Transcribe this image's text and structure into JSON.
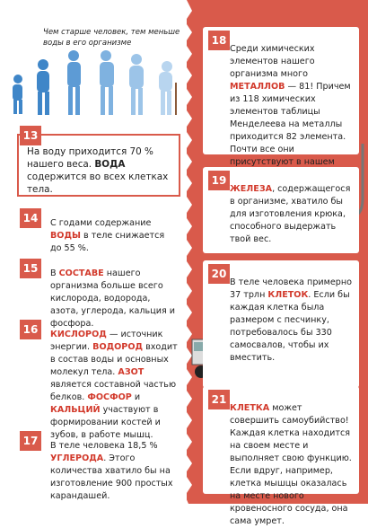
{
  "caption": "Чем старше человек, тем меньше воды в его организме",
  "facts": [
    {
      "number": "13",
      "parts": [
        {
          "text": "На воду приходится 70 % нашего веса. "
        },
        {
          "text": "ВОДА",
          "accent": true
        },
        {
          "text": " содержится во всех клетках тела."
        }
      ]
    },
    {
      "number": "14",
      "parts": [
        {
          "text": "С годами содержание "
        },
        {
          "text": "ВОДЫ",
          "accent": true
        },
        {
          "text": " в теле снижается до 55 %."
        }
      ]
    },
    {
      "number": "15",
      "parts": [
        {
          "text": "В "
        },
        {
          "text": "СОСТАВЕ",
          "accent": true
        },
        {
          "text": " нашего организма больше всего кислорода, водорода, азота, углерода, кальция и фосфора."
        }
      ]
    },
    {
      "number": "16",
      "parts": [
        {
          "text": "КИСЛОРОД",
          "accent": true
        },
        {
          "text": " — источник энергии. "
        },
        {
          "text": "ВОДОРОД",
          "accent": true
        },
        {
          "text": " входит в состав воды и основных молекул тела. "
        },
        {
          "text": "АЗОТ",
          "accent": true
        },
        {
          "text": " является составной частью белков. "
        },
        {
          "text": "ФОСФОР",
          "accent": true
        },
        {
          "text": " и "
        },
        {
          "text": "КАЛЬЦИЙ",
          "accent": true
        },
        {
          "text": " участвуют в формировании костей и зубов, в работе мышц."
        }
      ]
    },
    {
      "number": "17",
      "parts": [
        {
          "text": "В теле человека 18,5 % "
        },
        {
          "text": "УГЛЕРОДА",
          "accent": true
        },
        {
          "text": ". Этого количества хватило бы на изготовление 900 простых карандашей."
        }
      ]
    },
    {
      "number": "18",
      "parts": [
        {
          "text": "Среди химических элементов нашего организма много "
        },
        {
          "text": "МЕТАЛЛОВ",
          "accent": true
        },
        {
          "text": " — 81! Причем из 118 химических элементов таблицы Менделеева на металлы приходится 82 элемента. Почти все они присутствуют в нашем теле!"
        }
      ]
    },
    {
      "number": "19",
      "parts": [
        {
          "text": "ЖЕЛЕЗА",
          "accent": true
        },
        {
          "text": ", содержащегося в организме, хватило бы для изготовления крюка, способного выдержать твой вес."
        }
      ]
    },
    {
      "number": "20",
      "parts": [
        {
          "text": "В теле человека примерно 37 трлн "
        },
        {
          "text": "КЛЕТОК",
          "accent": true
        },
        {
          "text": ". Если бы каждая клетка была размером с песчинку, потребовалось бы 330 самосвалов, чтобы их вместить."
        }
      ]
    },
    {
      "number": "21",
      "parts": [
        {
          "text": "КЛЕТКА",
          "accent": true
        },
        {
          "text": " может совершить самоубийство! Каждая клетка находится на своем месте и выполняет свою функцию. Если вдруг, например, клетка мышцы оказалась на месте нового кровеносного сосуда, она сама умрет."
        }
      ]
    }
  ]
}
